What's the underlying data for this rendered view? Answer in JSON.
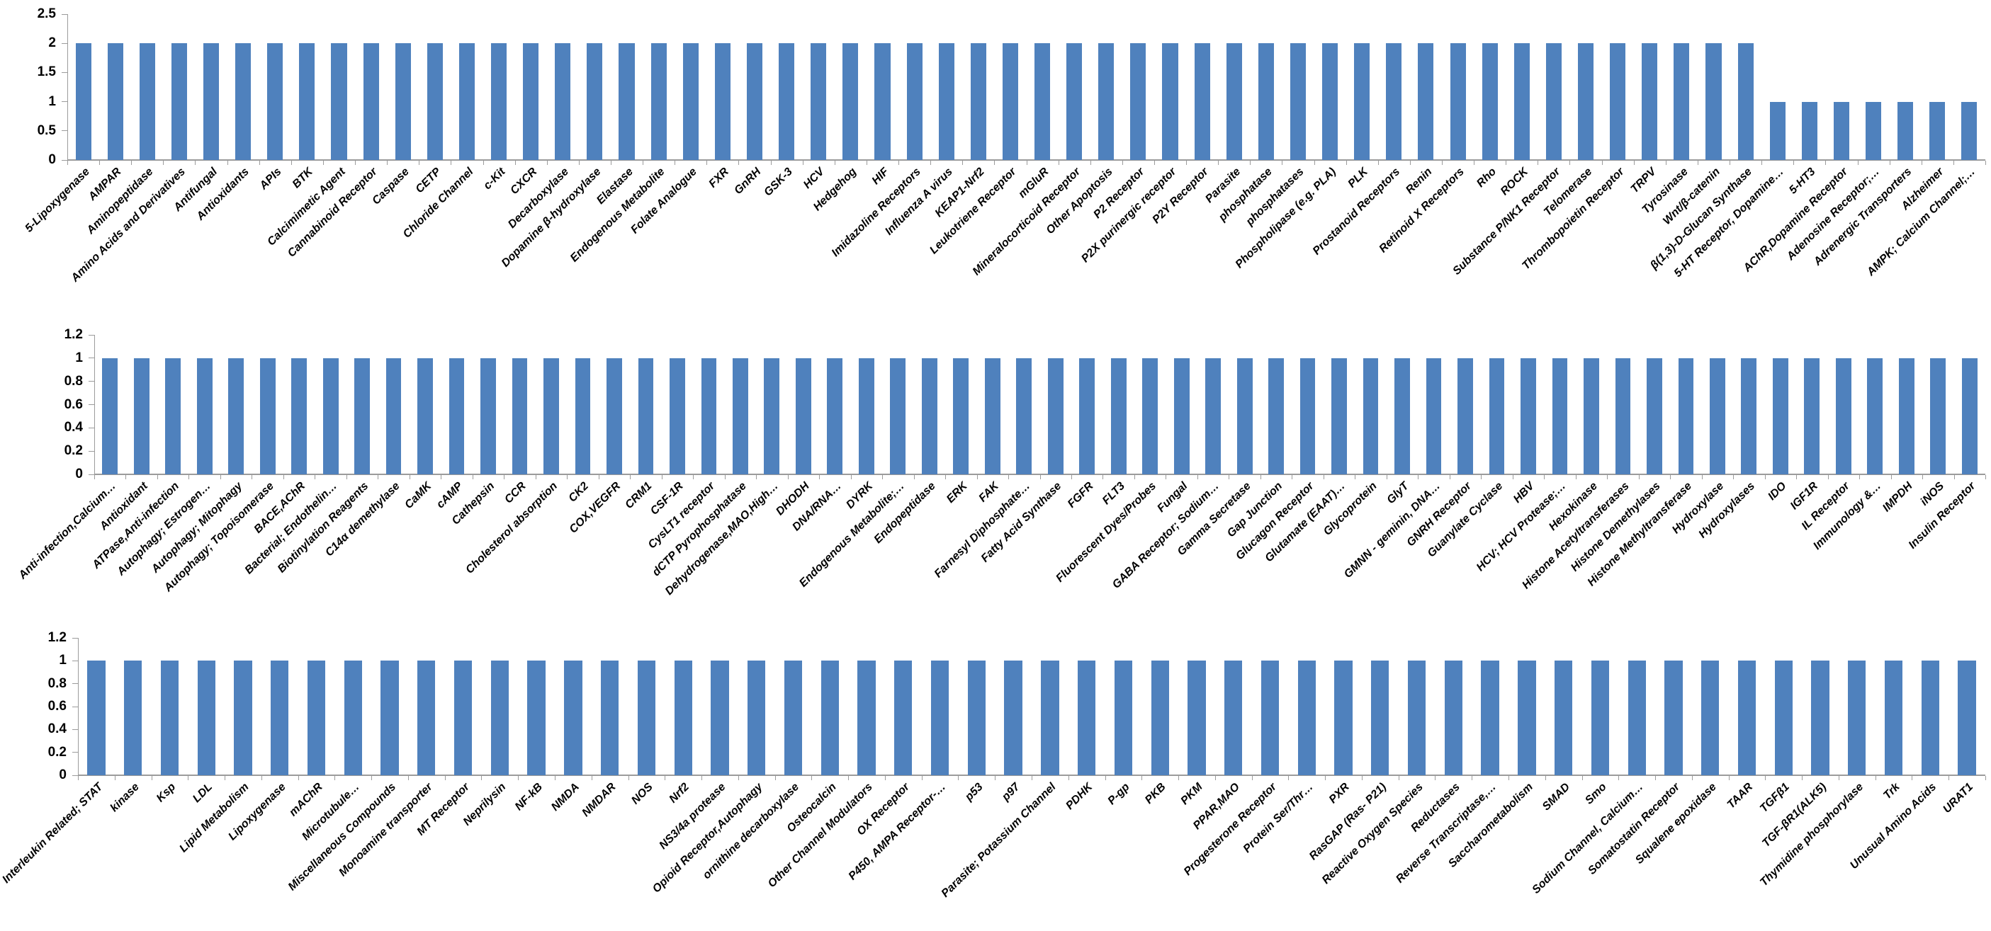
{
  "page": {
    "background": "#ffffff",
    "bar_color": "#4F81BD",
    "axis_color": "#9b9b9b"
  },
  "chart_data": [
    {
      "type": "bar",
      "title": "",
      "xlabel": "",
      "ylabel": "",
      "legend": "none",
      "grid": "off",
      "ylim": [
        0,
        2.5
      ],
      "ytick_labels": [
        "0",
        "0.5",
        "1",
        "1.5",
        "2",
        "2.5"
      ],
      "ytick_values": [
        0,
        0.5,
        1,
        1.5,
        2,
        2.5
      ],
      "categories": [
        "5-Lipoxygenase",
        "AMPAR",
        "Aminopeptidase",
        "Amino Acids and Derivatives",
        "Antifungal",
        "Antioxidants",
        "APIs",
        "BTK",
        "Calcimimetic Agent",
        "Cannabinoid Receptor",
        "Caspase",
        "CETP",
        "Chloride Channel",
        "c-Kit",
        "CXCR",
        "Decarboxylase",
        "Dopamine β-hydroxylase",
        "Elastase",
        "Endogenous Metabolite",
        "Folate Analogue",
        "FXR",
        "GnRH",
        "GSK-3",
        "HCV",
        "Hedgehog",
        "HIF",
        "Imidazoline Receptors",
        "Influenza A virus",
        "KEAP1-Nrf2",
        "Leukotriene Receptor",
        "mGluR",
        "Mineralocorticoid Receptor",
        "Other Apoptosis",
        "P2 Receptor",
        "P2X purinergic receptor",
        "P2Y Receptor",
        "Parasite",
        "phosphatase",
        "phosphatases",
        "Phospholipase (e.g. PLA)",
        "PLK",
        "Prostanoid Receptors",
        "Renin",
        "Retinoid X Receptors",
        "Rho",
        "ROCK",
        "Substance P/NK1 Receptor",
        "Telomerase",
        "Thrombopoietin Receptor",
        "TRPV",
        "Tyrosinase",
        "Wnt/β-catenin",
        "β(1,3)-D-Glucan Synthase",
        "5-HT Receptor, Dopamine…",
        "5-HT3",
        "AChR,Dopamine Receptor",
        "Adenosine Receptor;…",
        "Adrenergic Transporters",
        "Alzheimer",
        "AMPK; Calcium Channel;…"
      ],
      "values": [
        2,
        2,
        2,
        2,
        2,
        2,
        2,
        2,
        2,
        2,
        2,
        2,
        2,
        2,
        2,
        2,
        2,
        2,
        2,
        2,
        2,
        2,
        2,
        2,
        2,
        2,
        2,
        2,
        2,
        2,
        2,
        2,
        2,
        2,
        2,
        2,
        2,
        2,
        2,
        2,
        2,
        2,
        2,
        2,
        2,
        2,
        2,
        2,
        2,
        2,
        2,
        2,
        2,
        1,
        1,
        1,
        1,
        1,
        1,
        1
      ]
    },
    {
      "type": "bar",
      "title": "",
      "xlabel": "",
      "ylabel": "",
      "legend": "none",
      "grid": "off",
      "ylim": [
        0,
        1.2
      ],
      "ytick_labels": [
        "0",
        "0.2",
        "0.4",
        "0.6",
        "0.8",
        "1",
        "1.2"
      ],
      "ytick_values": [
        0,
        0.2,
        0.4,
        0.6,
        0.8,
        1,
        1.2
      ],
      "categories": [
        "Anti-infection,Calcium…",
        "Antioxidant",
        "ATPase,Anti-infection",
        "Autophagy; Estrogen…",
        "Autophagy; Mitophagy",
        "Autophagy; Topoisomerase",
        "BACE,AChR",
        "Bacterial; Endothelin…",
        "Biotinylation Reagents",
        "C14α demethylase",
        "CaMK",
        "cAMP",
        "Cathepsin",
        "CCR",
        "Cholesterol absorption",
        "CK2",
        "COX,VEGFR",
        "CRM1",
        "CSF-1R",
        "CysLT1 receptor",
        "dCTP Pyrophosphatase",
        "Dehydrogenase,MAO,High…",
        "DHODH",
        "DNA/RNA…",
        "DYRK",
        "Endogenous Metabolite;…",
        "Endopeptidase",
        "ERK",
        "FAK",
        "Farnesyl Diphosphate…",
        "Fatty Acid Synthase",
        "FGFR",
        "FLT3",
        "Fluorescent Dyes/Probes",
        "Fungal",
        "GABA Receptor; Sodium…",
        "Gamma Secretase",
        "Gap Junction",
        "Glucagon Receptor",
        "Glutamate (EAAT)…",
        "Glycoprotein",
        "GlyT",
        "GMNN - geminin, DNA…",
        "GNRH Receptor",
        "Guanylate Cyclase",
        "HBV",
        "HCV; HCV Protease;…",
        "Hexokinase",
        "Histone Acetyltransferases",
        "Histone Demethylases",
        "Histone Methyltransferase",
        "Hydroxylase",
        "Hydroxylases",
        "IDO",
        "IGF1R",
        "IL Receptor",
        "Immunology &…",
        "IMPDH",
        "iNOS",
        "Insulin Receptor"
      ],
      "values": [
        1,
        1,
        1,
        1,
        1,
        1,
        1,
        1,
        1,
        1,
        1,
        1,
        1,
        1,
        1,
        1,
        1,
        1,
        1,
        1,
        1,
        1,
        1,
        1,
        1,
        1,
        1,
        1,
        1,
        1,
        1,
        1,
        1,
        1,
        1,
        1,
        1,
        1,
        1,
        1,
        1,
        1,
        1,
        1,
        1,
        1,
        1,
        1,
        1,
        1,
        1,
        1,
        1,
        1,
        1,
        1,
        1,
        1,
        1,
        1
      ]
    },
    {
      "type": "bar",
      "title": "",
      "xlabel": "",
      "ylabel": "",
      "legend": "none",
      "grid": "off",
      "ylim": [
        0,
        1.2
      ],
      "ytick_labels": [
        "0",
        "0.2",
        "0.4",
        "0.6",
        "0.8",
        "1",
        "1.2"
      ],
      "ytick_values": [
        0,
        0.2,
        0.4,
        0.6,
        0.8,
        1,
        1.2
      ],
      "categories": [
        "Interleukin Related; STAT",
        "kinase",
        "Ksp",
        "LDL",
        "Lipid Metabolism",
        "Lipoxygenase",
        "mAChR",
        "Microtubule…",
        "Miscellaneous Compounds",
        "Monoamine transporter",
        "MT Receptor",
        "Neprilysin",
        "NF-kB",
        "NMDA",
        "NMDAR",
        "NOS",
        "Nrf2",
        "NS3/4a protease",
        "Opioid Receptor,Autophagy",
        "ornithine decarboxylase",
        "Osteocalcin",
        "Other Channel Modulators",
        "OX Receptor",
        "P450, AMPA Receptor-…",
        "p53",
        "p97",
        "Parasite; Potassium Channel",
        "PDHK",
        "P-gp",
        "PKB",
        "PKM",
        "PPAR,MAO",
        "Progesterone Receptor",
        "Protein Ser/Thr…",
        "PXR",
        "RasGAP (Ras- P21)",
        "Reactive Oxygen Species",
        "Reductases",
        "Reverse Transcriptase,…",
        "Saccharometabolism",
        "SMAD",
        "Smo",
        "Sodium Channel, Calcium…",
        "Somatostatin Receptor",
        "Squalene epoxidase",
        "TAAR",
        "TGFβ1",
        "TGF-βR1(ALK5)",
        "Thymidine phosphorylase",
        "Trk",
        "Unusual Amino Acids",
        "URAT1"
      ],
      "values": [
        1,
        1,
        1,
        1,
        1,
        1,
        1,
        1,
        1,
        1,
        1,
        1,
        1,
        1,
        1,
        1,
        1,
        1,
        1,
        1,
        1,
        1,
        1,
        1,
        1,
        1,
        1,
        1,
        1,
        1,
        1,
        1,
        1,
        1,
        1,
        1,
        1,
        1,
        1,
        1,
        1,
        1,
        1,
        1,
        1,
        1,
        1,
        1,
        1,
        1,
        1,
        1
      ]
    }
  ]
}
